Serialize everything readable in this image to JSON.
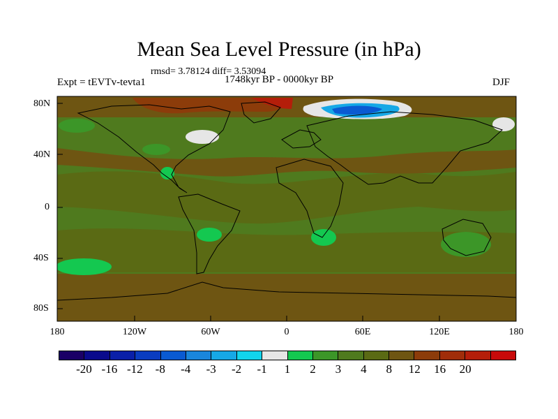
{
  "title": "Mean Sea Level Pressure (in hPa)",
  "stats": "rmsd= 3.78124 diff= 3.53094",
  "experiment": "Expt = tEVTv-tevta1",
  "period": "1748kyr BP - 0000kyr BP",
  "season": "DJF",
  "lat_labels": [
    "80N",
    "40N",
    "0",
    "40S",
    "80S"
  ],
  "lon_labels": [
    "180",
    "120W",
    "60W",
    "0",
    "60E",
    "120E",
    "180"
  ],
  "colorbar": {
    "colors": [
      "#1a0066",
      "#0a0a8c",
      "#0a1fa8",
      "#0a3cc0",
      "#0a5ad2",
      "#1a86dc",
      "#16a8e6",
      "#12d4ec",
      "#e6e6e6",
      "#14c850",
      "#3c9628",
      "#4f7a1e",
      "#5a6a14",
      "#6e5512",
      "#8c3c0a",
      "#a02d0a",
      "#b41e0a",
      "#c80a0a"
    ],
    "labels": [
      "-20",
      "-16",
      "-12",
      "-8",
      "-4",
      "-3",
      "-2",
      "-1",
      "1",
      "2",
      "3",
      "4",
      "8",
      "12",
      "16",
      "20"
    ]
  }
}
